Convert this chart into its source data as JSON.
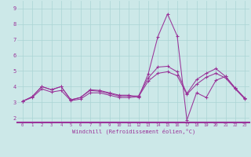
{
  "xlabel": "Windchill (Refroidissement éolien,°C)",
  "bg_color": "#cce8e8",
  "grid_color": "#aad4d4",
  "line_color": "#993399",
  "axis_color": "#993399",
  "x_ticks": [
    0,
    1,
    2,
    3,
    4,
    5,
    6,
    7,
    8,
    9,
    10,
    11,
    12,
    13,
    14,
    15,
    16,
    17,
    18,
    19,
    20,
    21,
    22,
    23
  ],
  "y_ticks": [
    2,
    3,
    4,
    5,
    6,
    7,
    8,
    9
  ],
  "ylim": [
    1.7,
    9.5
  ],
  "xlim": [
    -0.5,
    23.5
  ],
  "series": [
    [
      3.05,
      3.35,
      4.0,
      3.8,
      4.0,
      3.15,
      3.3,
      3.8,
      3.75,
      3.6,
      3.45,
      3.45,
      3.3,
      4.8,
      7.2,
      8.65,
      7.25,
      1.85,
      3.6,
      3.3,
      4.4,
      4.65,
      3.9,
      3.25
    ],
    [
      3.05,
      3.35,
      4.0,
      3.8,
      4.0,
      3.15,
      3.3,
      3.75,
      3.7,
      3.55,
      3.4,
      3.4,
      3.4,
      4.55,
      5.25,
      5.3,
      4.95,
      3.55,
      4.45,
      4.85,
      5.15,
      4.65,
      3.9,
      3.25
    ],
    [
      3.05,
      3.3,
      3.85,
      3.65,
      3.75,
      3.1,
      3.2,
      3.6,
      3.6,
      3.45,
      3.3,
      3.3,
      3.35,
      4.35,
      4.85,
      4.95,
      4.7,
      3.5,
      4.15,
      4.6,
      4.85,
      4.55,
      3.85,
      3.2
    ]
  ]
}
